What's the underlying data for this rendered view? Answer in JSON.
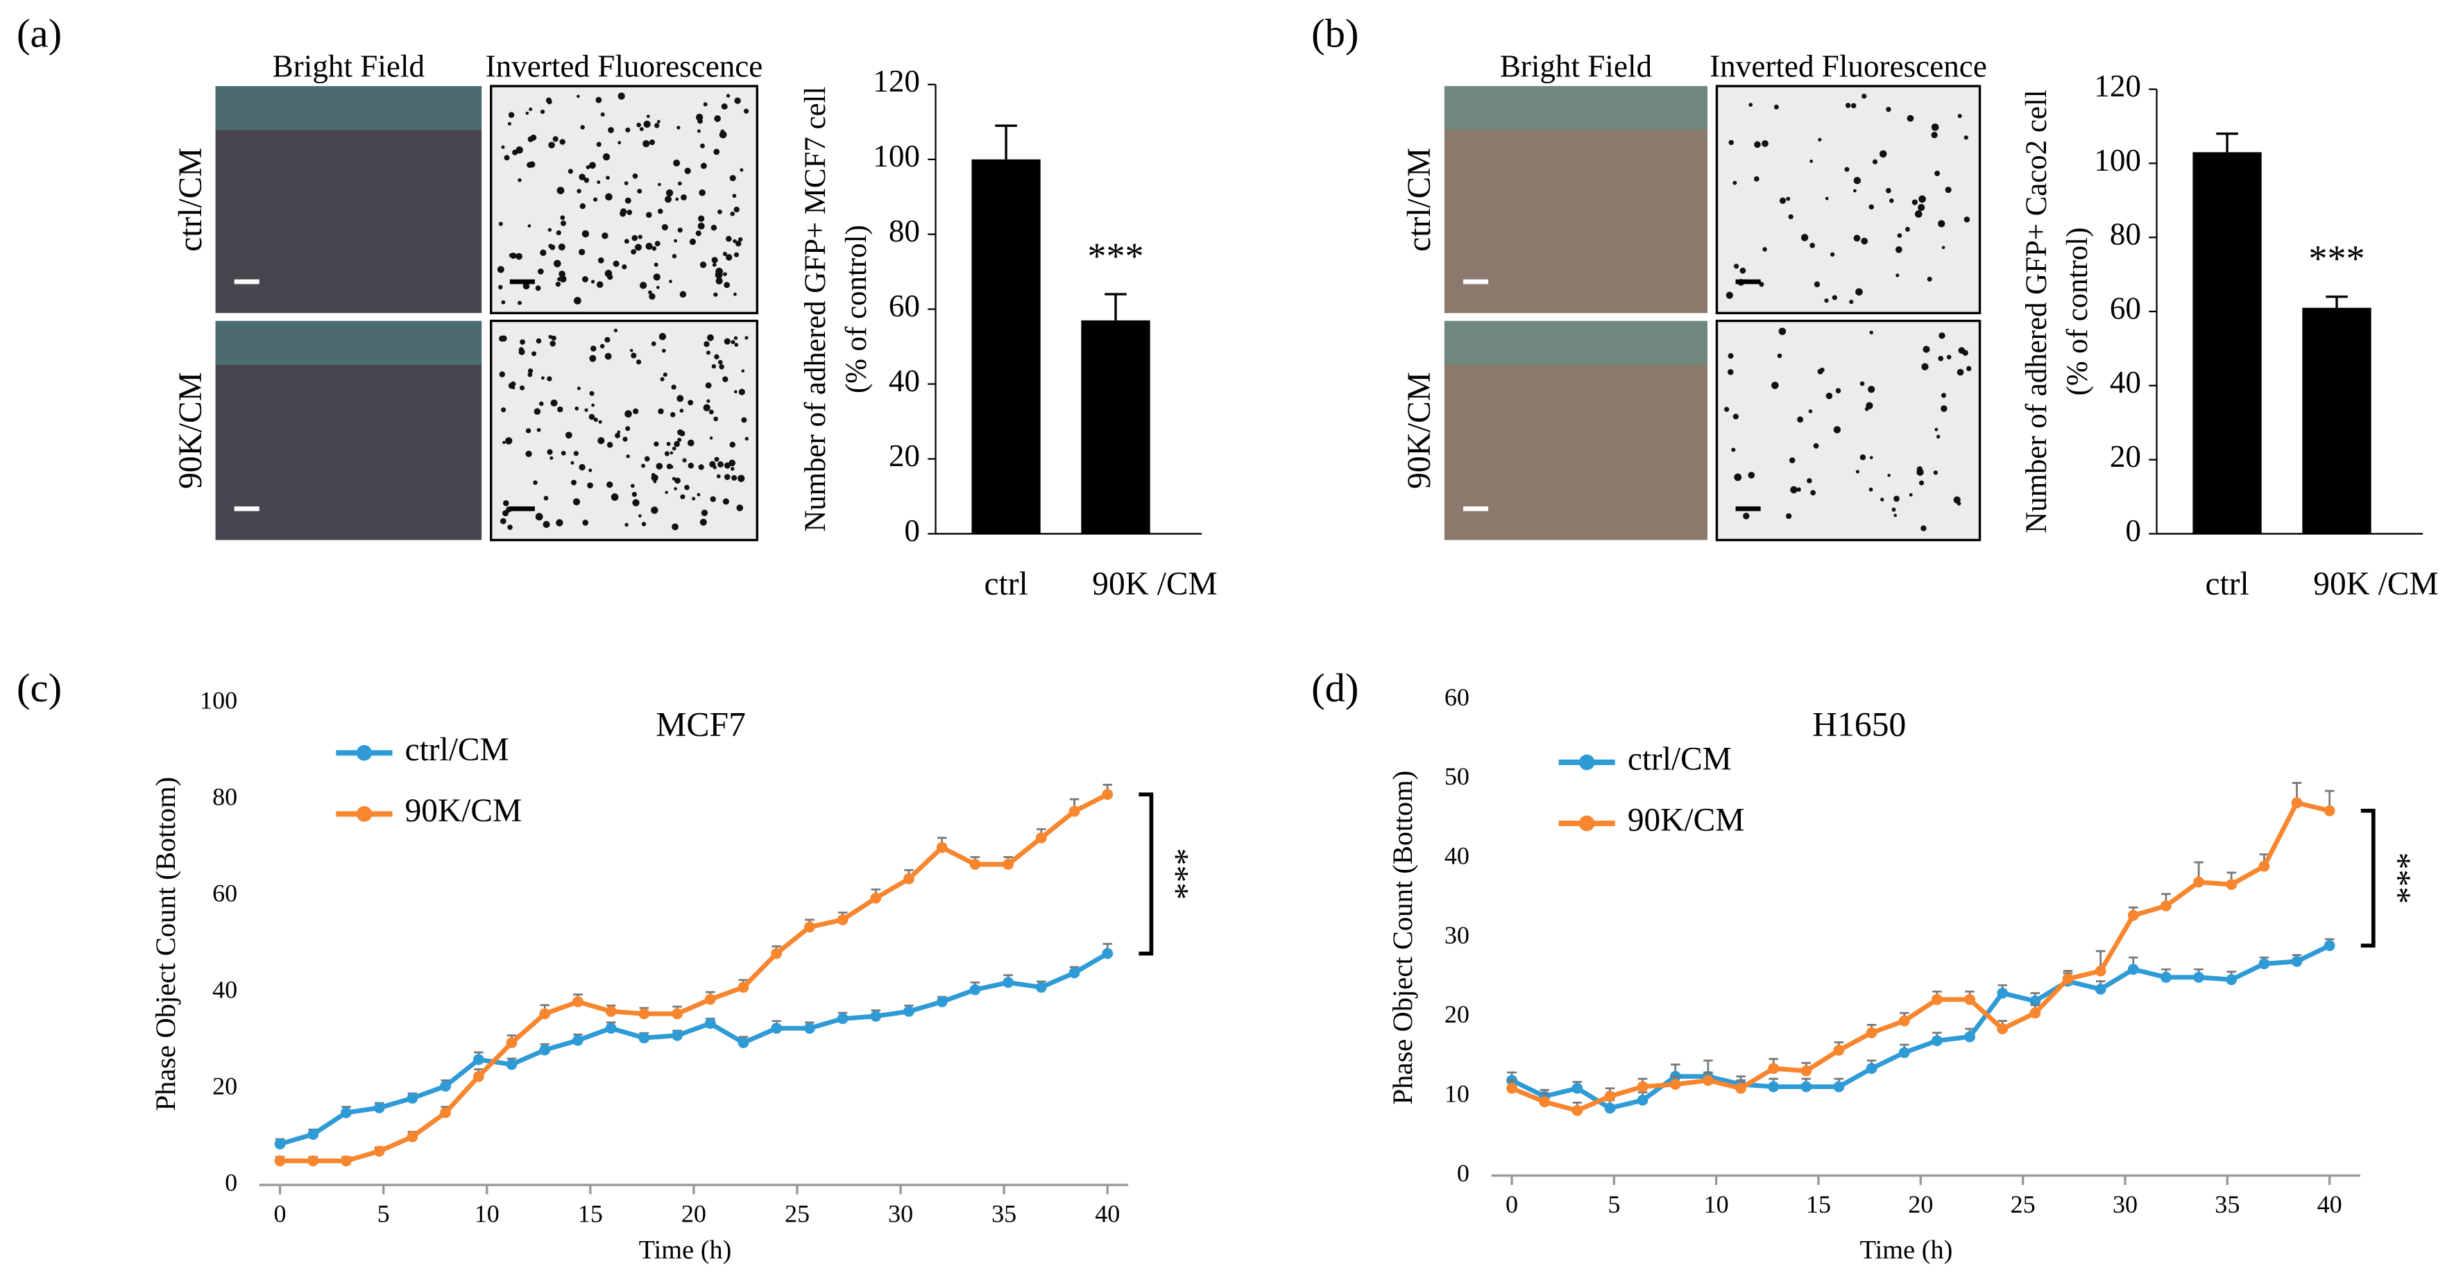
{
  "panels": [
    {
      "label": "(a)",
      "image_columns": [
        "Bright Field",
        "Inverted Fluorescence"
      ],
      "image_rows": [
        "ctrl/CM",
        "90K/CM"
      ]
    },
    {
      "label": "(b)",
      "image_columns": [
        "Bright Field",
        "Inverted Fluorescence"
      ],
      "image_rows": [
        "ctrl/CM",
        "90K/CM"
      ]
    },
    {
      "label": "(c)"
    },
    {
      "label": "(d)"
    }
  ],
  "chart_data": [
    {
      "type": "bar",
      "ylabel": [
        "Number of adhered GFP+ MCF7 cell",
        "(% of control)"
      ],
      "categories": [
        "ctrl",
        "90K /CM"
      ],
      "values": [
        100,
        57
      ],
      "errors": [
        9,
        7
      ],
      "color": "#000000",
      "ylim": [
        0,
        120
      ],
      "yticks": [
        0,
        20,
        40,
        60,
        80,
        100,
        120
      ],
      "annotation": "***"
    },
    {
      "type": "bar",
      "ylabel": [
        "Number of adhered GFP+ Caco2 cell",
        "(% of control)"
      ],
      "categories": [
        "ctrl",
        "90K /CM"
      ],
      "values": [
        103,
        61
      ],
      "errors": [
        5,
        3
      ],
      "color": "#000000",
      "ylim": [
        0,
        120
      ],
      "yticks": [
        0,
        20,
        40,
        60,
        80,
        100,
        120
      ],
      "annotation": "***"
    },
    {
      "type": "line",
      "title": "MCF7",
      "xlabel": "Time (h)",
      "ylabel": "Phase Object Count (Bottom)",
      "x": [
        0,
        1.6,
        3.2,
        4.8,
        6.4,
        8,
        9.6,
        11.2,
        12.8,
        14.4,
        16,
        17.6,
        19.2,
        20.8,
        22.4,
        24,
        25.6,
        27.2,
        28.8,
        30.4,
        32,
        33.6,
        35.2,
        36.8,
        38.4,
        40
      ],
      "series": [
        {
          "name": "ctrl/CM",
          "color": "#2e9bd6",
          "values": [
            8.5,
            10.5,
            15,
            16,
            18,
            20.5,
            26,
            25,
            28,
            30,
            32.5,
            30.5,
            31,
            33.5,
            29.5,
            32.5,
            32.5,
            34.5,
            35,
            36,
            38,
            40.5,
            42,
            41,
            44,
            48
          ],
          "errors": [
            1,
            1,
            1.2,
            1,
            1,
            1.2,
            1.5,
            1.2,
            1.2,
            1.2,
            1.2,
            1,
            1,
            1,
            1.2,
            1.5,
            1.2,
            1.2,
            1.2,
            1.2,
            1,
            1.5,
            1.5,
            1.2,
            1.2,
            2
          ]
        },
        {
          "name": "90K/CM",
          "color": "#f7862e",
          "values": [
            5,
            5,
            5,
            7,
            10,
            15,
            22.5,
            29.5,
            35.5,
            38,
            36,
            35.5,
            35.5,
            38.5,
            41,
            48,
            53.5,
            55,
            59.5,
            63.5,
            70,
            66.5,
            66.5,
            72,
            77.5,
            81
          ],
          "errors": [
            0.8,
            0.8,
            0.8,
            0.8,
            1,
            1.2,
            1.5,
            1.5,
            1.8,
            1.5,
            1.2,
            1.2,
            1.5,
            1.5,
            1.5,
            1.5,
            1.5,
            1.5,
            1.8,
            1.8,
            2,
            1.5,
            1.5,
            1.8,
            2.5,
            2
          ]
        }
      ],
      "xlim": [
        -1,
        41
      ],
      "xticks": [
        0,
        5,
        10,
        15,
        20,
        25,
        30,
        35,
        40
      ],
      "ylim": [
        0,
        100
      ],
      "yticks": [
        0,
        20,
        40,
        60,
        80,
        100
      ],
      "legend": "upper left",
      "annotation": "***"
    },
    {
      "type": "line",
      "title": "H1650",
      "xlabel": "Time (h)",
      "ylabel": "Phase Object Count (Bottom)",
      "x": [
        0,
        1.6,
        3.2,
        4.8,
        6.4,
        8,
        9.6,
        11.2,
        12.8,
        14.4,
        16,
        17.6,
        19.2,
        20.8,
        22.4,
        24,
        25.6,
        27.2,
        28.8,
        30.4,
        32,
        33.6,
        35.2,
        36.8,
        38.4,
        40
      ],
      "series": [
        {
          "name": "ctrl/CM",
          "color": "#2e9bd6",
          "values": [
            12,
            10,
            11,
            8.5,
            9.5,
            12.5,
            12.5,
            11.5,
            11.2,
            11.2,
            11.2,
            13.5,
            15.5,
            17,
            17.5,
            23,
            22,
            24.5,
            23.5,
            26,
            25,
            25,
            24.7,
            26.7,
            27,
            29
          ],
          "errors": [
            1,
            0.8,
            0.8,
            1,
            1,
            1.5,
            2,
            1,
            1,
            1,
            1,
            1,
            1,
            1,
            1,
            1,
            1,
            1,
            1,
            1.5,
            1,
            1,
            1,
            0.8,
            0.8,
            0.8
          ]
        },
        {
          "name": "90K/CM",
          "color": "#f7862e",
          "values": [
            11,
            9.3,
            8.2,
            10,
            11.2,
            11.5,
            12,
            11,
            13.5,
            13.2,
            15.8,
            18,
            19.5,
            22.2,
            22.2,
            18.5,
            20.5,
            24.8,
            25.8,
            32.8,
            34,
            37,
            36.7,
            39,
            47,
            46
          ],
          "errors": [
            1,
            1,
            1,
            1,
            1,
            1,
            1,
            1,
            1.2,
            1,
            1,
            1,
            1,
            1,
            1,
            1,
            1,
            1,
            2.5,
            1,
            1.5,
            2.5,
            1.5,
            1.5,
            2.5,
            2.5
          ]
        }
      ],
      "xlim": [
        -1,
        41.5
      ],
      "xticks": [
        0,
        5,
        10,
        15,
        20,
        25,
        30,
        35,
        40
      ],
      "ylim": [
        0,
        60
      ],
      "yticks": [
        0,
        10,
        20,
        30,
        40,
        50,
        60
      ],
      "legend": "upper left",
      "annotation": "***"
    }
  ]
}
